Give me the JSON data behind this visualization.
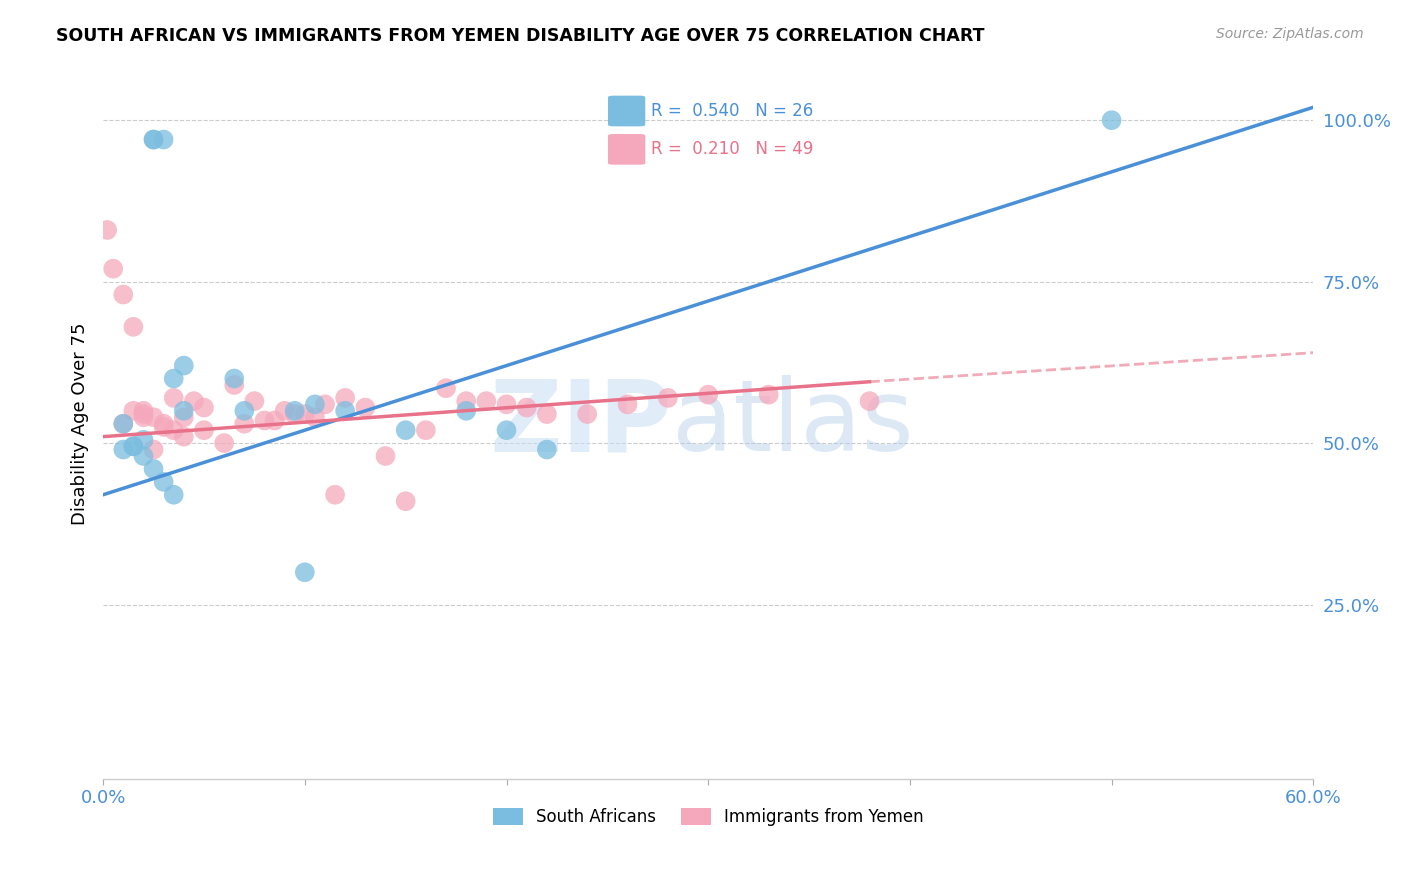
{
  "title": "SOUTH AFRICAN VS IMMIGRANTS FROM YEMEN DISABILITY AGE OVER 75 CORRELATION CHART",
  "source": "Source: ZipAtlas.com",
  "ylabel": "Disability Age Over 75",
  "yticks": [
    0.0,
    0.25,
    0.5,
    0.75,
    1.0
  ],
  "ytick_labels": [
    "",
    "25.0%",
    "50.0%",
    "75.0%",
    "100.0%"
  ],
  "xlim": [
    0.0,
    0.6
  ],
  "ylim": [
    -0.02,
    1.08
  ],
  "legend_blue_r": "0.540",
  "legend_blue_n": "26",
  "legend_pink_r": "0.210",
  "legend_pink_n": "49",
  "legend_label_blue": "South Africans",
  "legend_label_pink": "Immigrants from Yemen",
  "blue_color": "#7bbde0",
  "pink_color": "#f5a8bc",
  "trend_blue_color": "#4a90d9",
  "trend_pink_color": "#e8728a",
  "watermark_zip": "ZIP",
  "watermark_atlas": "atlas",
  "blue_scatter_x": [
    0.025,
    0.025,
    0.03,
    0.01,
    0.01,
    0.015,
    0.02,
    0.015,
    0.02,
    0.025,
    0.03,
    0.035,
    0.04,
    0.035,
    0.04,
    0.065,
    0.07,
    0.095,
    0.1,
    0.105,
    0.12,
    0.15,
    0.18,
    0.2,
    0.22,
    0.5
  ],
  "blue_scatter_y": [
    0.97,
    0.97,
    0.97,
    0.53,
    0.49,
    0.495,
    0.505,
    0.495,
    0.48,
    0.46,
    0.44,
    0.42,
    0.62,
    0.6,
    0.55,
    0.6,
    0.55,
    0.55,
    0.3,
    0.56,
    0.55,
    0.52,
    0.55,
    0.52,
    0.49,
    1.0
  ],
  "pink_scatter_x": [
    0.002,
    0.005,
    0.01,
    0.01,
    0.015,
    0.015,
    0.02,
    0.02,
    0.02,
    0.025,
    0.025,
    0.03,
    0.03,
    0.035,
    0.035,
    0.04,
    0.04,
    0.045,
    0.05,
    0.05,
    0.06,
    0.065,
    0.07,
    0.075,
    0.08,
    0.085,
    0.09,
    0.095,
    0.1,
    0.105,
    0.11,
    0.115,
    0.12,
    0.13,
    0.14,
    0.15,
    0.16,
    0.17,
    0.18,
    0.19,
    0.2,
    0.21,
    0.22,
    0.24,
    0.26,
    0.28,
    0.3,
    0.33,
    0.38
  ],
  "pink_scatter_y": [
    0.83,
    0.77,
    0.73,
    0.53,
    0.68,
    0.55,
    0.55,
    0.545,
    0.54,
    0.54,
    0.49,
    0.53,
    0.525,
    0.52,
    0.57,
    0.54,
    0.51,
    0.565,
    0.52,
    0.555,
    0.5,
    0.59,
    0.53,
    0.565,
    0.535,
    0.535,
    0.55,
    0.545,
    0.545,
    0.54,
    0.56,
    0.42,
    0.57,
    0.555,
    0.48,
    0.41,
    0.52,
    0.585,
    0.565,
    0.565,
    0.56,
    0.555,
    0.545,
    0.545,
    0.56,
    0.57,
    0.575,
    0.575,
    0.565
  ],
  "blue_trend_x0": 0.0,
  "blue_trend_x1": 0.6,
  "blue_trend_y0": 0.42,
  "blue_trend_y1": 1.02,
  "pink_trend_x0": 0.0,
  "pink_trend_x1": 0.38,
  "pink_trend_solid_y0": 0.51,
  "pink_trend_solid_y1": 0.595,
  "pink_trend_dash_x0": 0.38,
  "pink_trend_dash_x1": 0.6,
  "pink_trend_dash_y0": 0.595,
  "pink_trend_dash_y1": 0.64
}
